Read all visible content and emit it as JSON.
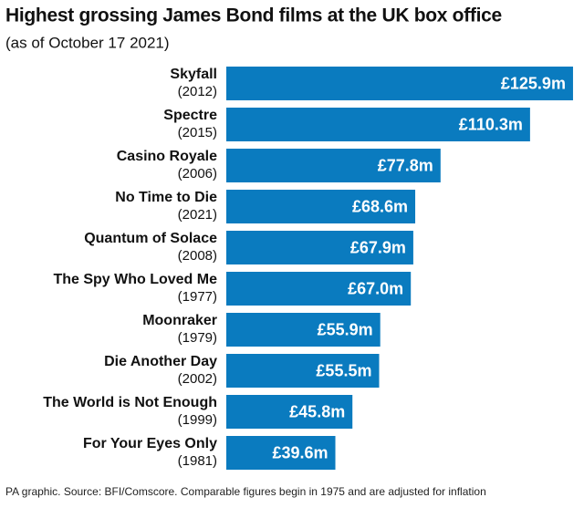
{
  "chart_data": {
    "type": "bar",
    "orientation": "horizontal",
    "title": "Highest grossing James Bond films at the UK box office",
    "subtitle": "(as of October 17 2021)",
    "source": "PA graphic. Source: BFI/Comscore. Comparable figures begin in 1975 and are adjusted for inflation",
    "categories": [
      "Skyfall",
      "Spectre",
      "Casino Royale",
      "No Time to Die",
      "Quantum of Solace",
      "The Spy Who Loved Me",
      "Moonraker",
      "Die Another Day",
      "The World is Not Enough",
      "For Your Eyes Only"
    ],
    "years": [
      "(2012)",
      "(2015)",
      "(2006)",
      "(2021)",
      "(2008)",
      "(1977)",
      "(1979)",
      "(2002)",
      "(1999)",
      "(1981)"
    ],
    "values": [
      125.9,
      110.3,
      77.8,
      68.6,
      67.9,
      67.0,
      55.9,
      55.5,
      45.8,
      39.6
    ],
    "value_labels": [
      "£125.9m",
      "£110.3m",
      "£77.8m",
      "£68.6m",
      "£67.9m",
      "£67.0m",
      "£55.9m",
      "£55.5m",
      "£45.8m",
      "£39.6m"
    ],
    "color": "#0a7bbf"
  }
}
